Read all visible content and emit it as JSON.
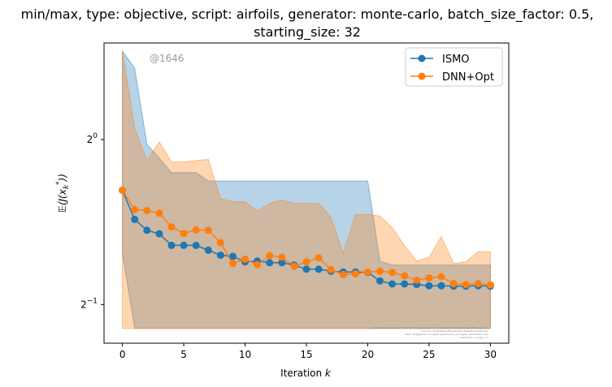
{
  "chart_data": {
    "type": "line",
    "title_lines": [
      "min/max, type: objective, script: airfoils, generator: monte-carlo, batch_size_factor: 0.5,",
      "starting_size: 32"
    ],
    "xlabel": "Iteration k",
    "ylabel": "E(J(x_k*))",
    "y_scale": "log2",
    "xlim": [
      -1.5,
      31.5
    ],
    "ylim": [
      0.425,
      1.5
    ],
    "x_ticks": [
      0,
      5,
      10,
      15,
      20,
      25,
      30
    ],
    "y_ticks": [
      {
        "value": 1.0,
        "label_base": "2",
        "label_exp": "0"
      },
      {
        "value": 0.5,
        "label_base": "2",
        "label_exp": "−1"
      }
    ],
    "watermark": "@1646",
    "credits": [
      "By Kjetil Olsen Lye @ ETHZ <kjetil.o.lye@gmail.com> and Siddhartha Mishra @ ETHZ <sid...>",
      "Commit: 1b6f18aa5e3f0a24ad0b7d6a5d0ca13a44d4a",
      "Repo: git@github.com:kjetil-lye/iterative_surrogate_optimization.git",
      "Hostname: eu-login-27"
    ],
    "legend": {
      "position": "upper-right"
    },
    "x": [
      0,
      1,
      2,
      3,
      4,
      5,
      6,
      7,
      8,
      9,
      10,
      11,
      12,
      13,
      14,
      15,
      16,
      17,
      18,
      19,
      20,
      21,
      22,
      23,
      24,
      25,
      26,
      27,
      28,
      29,
      30
    ],
    "series": [
      {
        "name": "ISMO",
        "color": "#1f77b4",
        "values": [
          0.808,
          0.715,
          0.683,
          0.673,
          0.641,
          0.641,
          0.641,
          0.628,
          0.615,
          0.612,
          0.598,
          0.6,
          0.596,
          0.596,
          0.59,
          0.58,
          0.58,
          0.575,
          0.573,
          0.573,
          0.572,
          0.552,
          0.545,
          0.545,
          0.544,
          0.541,
          0.541,
          0.54,
          0.54,
          0.541,
          0.54
        ],
        "band_max": [
          1.45,
          1.35,
          0.98,
          0.925,
          0.87,
          0.87,
          0.87,
          0.84,
          0.84,
          0.84,
          0.84,
          0.84,
          0.84,
          0.84,
          0.84,
          0.84,
          0.84,
          0.84,
          0.84,
          0.84,
          0.84,
          0.6,
          0.59,
          0.59,
          0.59,
          0.59,
          0.59,
          0.59,
          0.59,
          0.59,
          0.59
        ],
        "band_min": [
          0.62,
          0.452,
          0.452,
          0.452,
          0.452,
          0.452,
          0.452,
          0.452,
          0.452,
          0.452,
          0.452,
          0.452,
          0.452,
          0.452,
          0.452,
          0.452,
          0.452,
          0.452,
          0.452,
          0.452,
          0.452,
          0.452,
          0.452,
          0.452,
          0.452,
          0.452,
          0.452,
          0.452,
          0.452,
          0.452,
          0.452
        ]
      },
      {
        "name": "DNN+Opt",
        "color": "#ff7f0e",
        "values": [
          0.808,
          0.745,
          0.742,
          0.734,
          0.693,
          0.674,
          0.684,
          0.683,
          0.648,
          0.594,
          0.605,
          0.591,
          0.614,
          0.61,
          0.587,
          0.598,
          0.608,
          0.579,
          0.567,
          0.569,
          0.573,
          0.575,
          0.572,
          0.564,
          0.554,
          0.559,
          0.562,
          0.546,
          0.544,
          0.546,
          0.543
        ],
        "band_max": [
          1.45,
          1.05,
          0.915,
          0.99,
          0.91,
          0.91,
          0.915,
          0.92,
          0.78,
          0.77,
          0.77,
          0.74,
          0.765,
          0.775,
          0.765,
          0.765,
          0.765,
          0.72,
          0.62,
          0.73,
          0.73,
          0.725,
          0.69,
          0.64,
          0.6,
          0.61,
          0.665,
          0.594,
          0.598,
          0.624,
          0.624
        ],
        "band_min": [
          0.452,
          0.452,
          0.452,
          0.452,
          0.452,
          0.452,
          0.452,
          0.452,
          0.452,
          0.452,
          0.452,
          0.452,
          0.452,
          0.452,
          0.452,
          0.452,
          0.452,
          0.452,
          0.452,
          0.452,
          0.452,
          0.452,
          0.452,
          0.452,
          0.452,
          0.452,
          0.452,
          0.452,
          0.452,
          0.452,
          0.452
        ]
      }
    ]
  }
}
